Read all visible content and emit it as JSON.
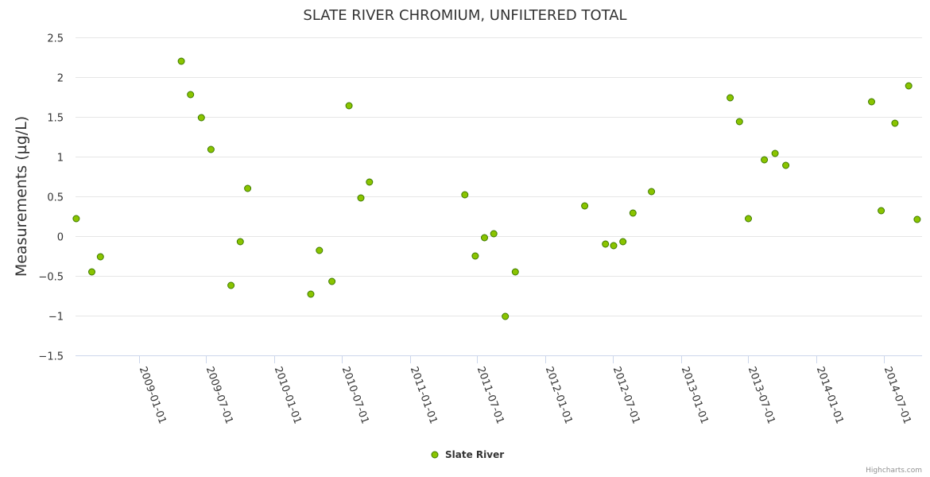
{
  "chart_data": {
    "type": "scatter",
    "title": "SLATE RIVER CHROMIUM, UNFILTERED TOTAL",
    "ylabel": "Measurements (µg/L)",
    "xlabel": "",
    "ylim": [
      -1.5,
      2.5
    ],
    "yticks": [
      "2.5",
      "2",
      "1.5",
      "1",
      "0.5",
      "0",
      "−0.5",
      "−1",
      "−1.5"
    ],
    "ytick_values": [
      2.5,
      2,
      1.5,
      1,
      0.5,
      0,
      -0.5,
      -1,
      -1.5
    ],
    "xlim": [
      "2008-07-14",
      "2014-10-12"
    ],
    "xticks": [
      "2009-01-01",
      "2009-07-01",
      "2010-01-01",
      "2010-07-01",
      "2011-01-01",
      "2011-07-01",
      "2012-01-01",
      "2012-07-01",
      "2013-01-01",
      "2013-07-01",
      "2014-01-01",
      "2014-07-01"
    ],
    "grid": true,
    "legend_position": "bottom-center",
    "series": [
      {
        "name": "Slate River",
        "color": "#8ac400",
        "border_color": "#3d7a00",
        "points": [
          {
            "x": "2008-07-16",
            "y": 0.22
          },
          {
            "x": "2008-08-27",
            "y": -0.45
          },
          {
            "x": "2008-09-19",
            "y": -0.26
          },
          {
            "x": "2009-04-25",
            "y": 2.2
          },
          {
            "x": "2009-05-20",
            "y": 1.78
          },
          {
            "x": "2009-06-18",
            "y": 1.49
          },
          {
            "x": "2009-07-14",
            "y": 1.09
          },
          {
            "x": "2009-09-06",
            "y": -0.62
          },
          {
            "x": "2009-10-01",
            "y": -0.07
          },
          {
            "x": "2009-10-21",
            "y": 0.6
          },
          {
            "x": "2010-04-09",
            "y": -0.73
          },
          {
            "x": "2010-05-02",
            "y": -0.18
          },
          {
            "x": "2010-06-05",
            "y": -0.57
          },
          {
            "x": "2010-07-21",
            "y": 1.64
          },
          {
            "x": "2010-08-22",
            "y": 0.48
          },
          {
            "x": "2010-09-14",
            "y": 0.68
          },
          {
            "x": "2011-05-29",
            "y": 0.52
          },
          {
            "x": "2011-06-26",
            "y": -0.25
          },
          {
            "x": "2011-07-21",
            "y": -0.02
          },
          {
            "x": "2011-08-15",
            "y": 0.03
          },
          {
            "x": "2011-09-15",
            "y": -1.01
          },
          {
            "x": "2011-10-12",
            "y": -0.45
          },
          {
            "x": "2012-04-16",
            "y": 0.38
          },
          {
            "x": "2012-06-11",
            "y": -0.1
          },
          {
            "x": "2012-07-03",
            "y": -0.12
          },
          {
            "x": "2012-07-28",
            "y": -0.07
          },
          {
            "x": "2012-08-24",
            "y": 0.29
          },
          {
            "x": "2012-10-13",
            "y": 0.56
          },
          {
            "x": "2013-05-13",
            "y": 1.74
          },
          {
            "x": "2013-06-07",
            "y": 1.44
          },
          {
            "x": "2013-07-01",
            "y": 0.22
          },
          {
            "x": "2013-08-13",
            "y": 0.96
          },
          {
            "x": "2013-09-11",
            "y": 1.04
          },
          {
            "x": "2013-10-10",
            "y": 0.89
          },
          {
            "x": "2014-05-29",
            "y": 1.69
          },
          {
            "x": "2014-06-24",
            "y": 0.32
          },
          {
            "x": "2014-07-31",
            "y": 1.42
          },
          {
            "x": "2014-09-06",
            "y": 1.89
          },
          {
            "x": "2014-09-29",
            "y": 0.21
          }
        ]
      }
    ]
  },
  "credits": "Highcharts.com"
}
